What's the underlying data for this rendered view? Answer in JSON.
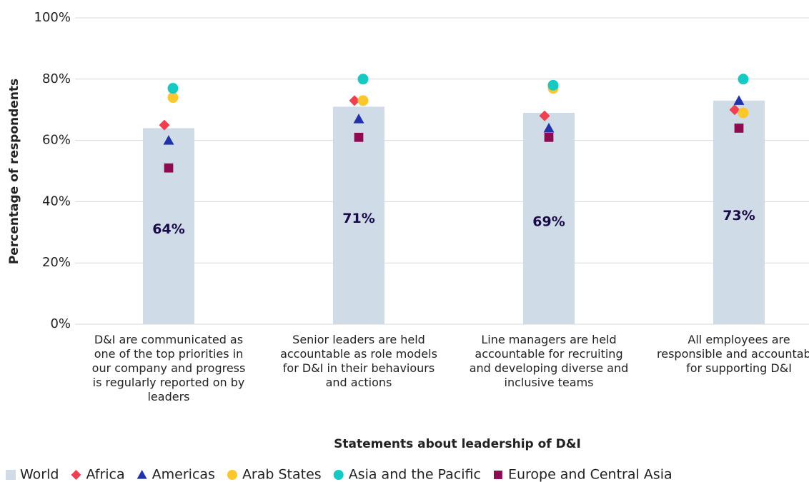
{
  "chart_data": {
    "type": "bar",
    "x_label": "Statements about leadership of D&I",
    "y_label": "Percentage of respondents",
    "categories": [
      "D&I are communicated as one of the top priorities in our company and progress is regularly reported on by leaders",
      "Senior leaders are held accountable as role models for D&I in their behaviours and actions",
      "Line managers are held accountable for recruiting and developing diverse and inclusive teams",
      "All employees are responsible and accountable for supporting D&I"
    ],
    "ylim": [
      0,
      100
    ],
    "yticks": [
      {
        "value": 0,
        "label": "0%"
      },
      {
        "value": 20,
        "label": "20%"
      },
      {
        "value": 40,
        "label": "40%"
      },
      {
        "value": 60,
        "label": "60%"
      },
      {
        "value": 80,
        "label": "80%"
      },
      {
        "value": 100,
        "label": "100%"
      }
    ],
    "grid": true,
    "legend": "bottom",
    "series": [
      {
        "name": "World",
        "color": "#cfdce8",
        "marker": "bar",
        "values": [
          64,
          71,
          69,
          73
        ],
        "value_labels": [
          "64%",
          "71%",
          "69%",
          "73%"
        ]
      },
      {
        "name": "Africa",
        "color": "#f0404f",
        "marker": "diamond",
        "values": [
          65,
          73,
          68,
          70
        ]
      },
      {
        "name": "Americas",
        "color": "#2233aa",
        "marker": "triangle",
        "values": [
          60,
          67,
          64,
          73
        ]
      },
      {
        "name": "Arab States",
        "color": "#fcc72e",
        "marker": "circle",
        "values": [
          74,
          73,
          77,
          69
        ]
      },
      {
        "name": "Asia and the Pacific",
        "color": "#17c9c3",
        "marker": "circle",
        "values": [
          77,
          80,
          78,
          80
        ]
      },
      {
        "name": "Europe and Central Asia",
        "color": "#8e0b52",
        "marker": "square",
        "values": [
          51,
          61,
          61,
          64
        ]
      }
    ]
  }
}
